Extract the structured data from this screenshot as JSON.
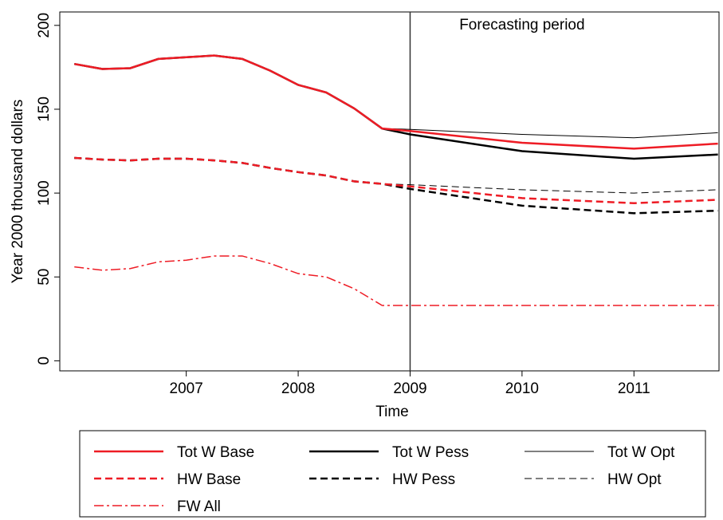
{
  "chart_data": {
    "type": "line",
    "x_label": "Time",
    "y_label": "Year 2000 thousand dollars",
    "annotation": "Forecasting period",
    "vline": 2009,
    "x": [
      2006,
      2006.25,
      2006.5,
      2006.75,
      2007,
      2007.25,
      2007.5,
      2007.75,
      2008,
      2008.25,
      2008.5,
      2008.75,
      2009,
      2010,
      2011,
      2011.75
    ],
    "xlim": [
      2005.87,
      2011.76
    ],
    "xticks": [
      2007,
      2008,
      2009,
      2010,
      2011
    ],
    "ylim": [
      -6,
      208
    ],
    "yticks": [
      0,
      50,
      100,
      150,
      200
    ],
    "legend": "bottom",
    "series": [
      {
        "name": "Tot W Base",
        "color": "#ee1c25",
        "linestyle": "solid",
        "linewidth": 2.5,
        "values": [
          177,
          174,
          174.5,
          180,
          181,
          182,
          180,
          173,
          164.5,
          160,
          150.5,
          138.5,
          137,
          130,
          126.5,
          129.5
        ]
      },
      {
        "name": "Tot W Pess",
        "color": "#000000",
        "linestyle": "solid",
        "linewidth": 2.5,
        "values": [
          177,
          174,
          174.5,
          180,
          181,
          182,
          180,
          173,
          164.5,
          160,
          150.5,
          138.5,
          135,
          125,
          120.5,
          123
        ]
      },
      {
        "name": "Tot W Opt",
        "color": "#000000",
        "linestyle": "solid",
        "linewidth": 1,
        "values": [
          177,
          174,
          174.5,
          180,
          181,
          182,
          180,
          173,
          164.5,
          160,
          150.5,
          138.5,
          138,
          135,
          133,
          136
        ]
      },
      {
        "name": "HW Base",
        "color": "#ee1c25",
        "linestyle": "dash",
        "linewidth": 2.5,
        "values": [
          121,
          120,
          119.5,
          120.5,
          120.5,
          119.5,
          118,
          115,
          112.5,
          110.5,
          107,
          105.5,
          104,
          97,
          94,
          96
        ]
      },
      {
        "name": "HW Pess",
        "color": "#000000",
        "linestyle": "dash",
        "linewidth": 2.5,
        "values": [
          121,
          120,
          119.5,
          120.5,
          120.5,
          119.5,
          118,
          115,
          112.5,
          110.5,
          107,
          105.5,
          102.5,
          92.5,
          88,
          89.5
        ]
      },
      {
        "name": "HW Opt",
        "color": "#000000",
        "linestyle": "dash",
        "linewidth": 1,
        "values": [
          121,
          120,
          119.5,
          120.5,
          120.5,
          119.5,
          118,
          115,
          112.5,
          110.5,
          107,
          105.5,
          105,
          102,
          100,
          102
        ]
      },
      {
        "name": "FW All",
        "color": "#ee1c25",
        "linestyle": "dashdot",
        "linewidth": 1.5,
        "values": [
          56,
          54,
          55,
          59,
          60,
          62.5,
          62.5,
          58,
          52,
          50,
          43,
          33,
          33,
          33,
          33,
          33
        ]
      }
    ]
  }
}
